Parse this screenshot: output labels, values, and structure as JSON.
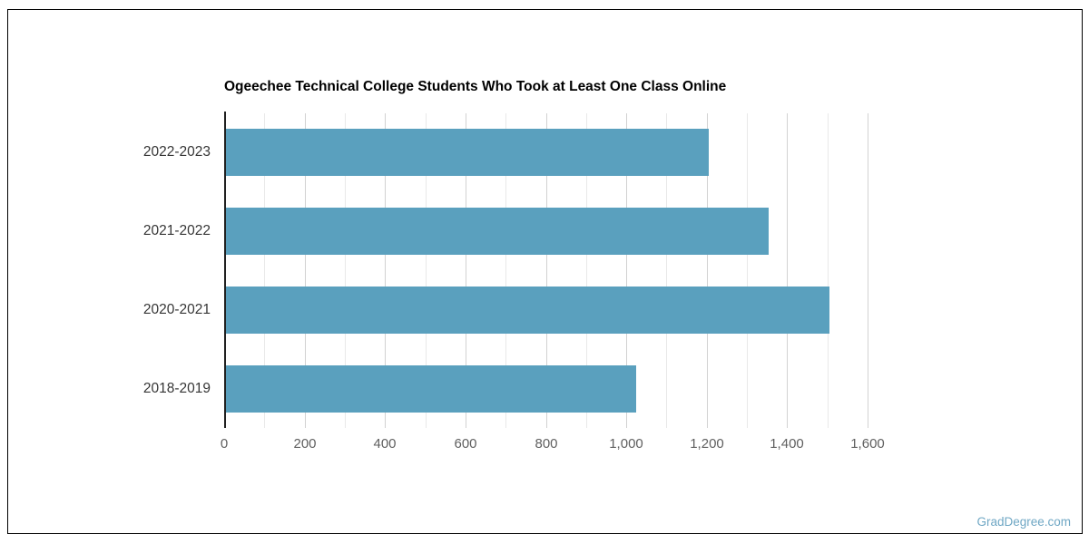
{
  "frame": {
    "background": "#ffffff",
    "border_color": "#000000"
  },
  "watermark": {
    "text": "GradDegree.com",
    "color": "#6fa7c4"
  },
  "chart_data": {
    "type": "bar",
    "orientation": "horizontal",
    "title": "Ogeechee Technical College Students Who Took at Least One Class Online",
    "categories": [
      "2022-2023",
      "2021-2022",
      "2020-2021",
      "2018-2019"
    ],
    "values": [
      1200,
      1350,
      1500,
      1020
    ],
    "xlabel": "",
    "ylabel": "",
    "xlim": [
      0,
      1600
    ],
    "x_tick_labels": [
      "0",
      "200",
      "400",
      "600",
      "800",
      "1,000",
      "1,200",
      "1,400",
      "1,600"
    ],
    "x_label_interval": 200,
    "x_gridline_interval": 100,
    "grid": true,
    "legend": "none",
    "bar_color": "#5aa0be",
    "axis_line_color": "#212121",
    "gridline_minor_color": "#e9e9e9",
    "gridline_major_color": "#d2d2d2",
    "title_color": "#000000",
    "category_label_color": "#363636",
    "tick_label_color": "#5f5f5f"
  }
}
